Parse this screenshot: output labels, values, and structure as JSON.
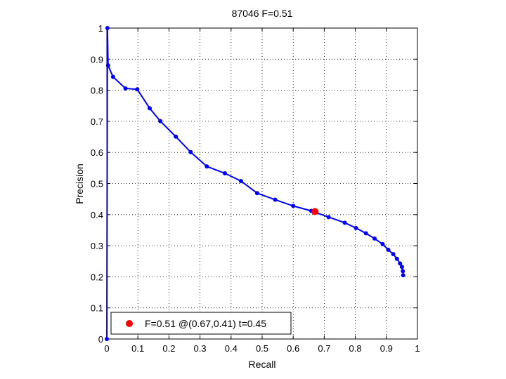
{
  "chart_data": {
    "type": "line",
    "title": "87046 F=0.51",
    "xlabel": "Recall",
    "ylabel": "Precision",
    "xlim": [
      0,
      1
    ],
    "ylim": [
      0,
      1
    ],
    "xticks": [
      "0",
      "0.1",
      "0.2",
      "0.3",
      "0.4",
      "0.5",
      "0.6",
      "0.7",
      "0.8",
      "0.9",
      "1"
    ],
    "yticks": [
      "0",
      "0.1",
      "0.2",
      "0.3",
      "0.4",
      "0.5",
      "0.6",
      "0.7",
      "0.8",
      "0.9",
      "1"
    ],
    "grid": true,
    "series": [
      {
        "color": "#0000ff",
        "x": [
          0.0,
          0.002,
          0.004,
          0.02,
          0.06,
          0.098,
          0.138,
          0.172,
          0.222,
          0.27,
          0.322,
          0.38,
          0.432,
          0.484,
          0.542,
          0.6,
          0.658,
          0.714,
          0.766,
          0.802,
          0.834,
          0.862,
          0.888,
          0.906,
          0.922,
          0.934,
          0.944,
          0.95,
          0.953,
          0.954
        ],
        "y": [
          0.0,
          1.0,
          0.88,
          0.843,
          0.806,
          0.803,
          0.742,
          0.701,
          0.651,
          0.601,
          0.555,
          0.533,
          0.508,
          0.469,
          0.448,
          0.428,
          0.412,
          0.392,
          0.374,
          0.357,
          0.34,
          0.323,
          0.305,
          0.287,
          0.273,
          0.258,
          0.243,
          0.232,
          0.218,
          0.205
        ]
      }
    ],
    "highlight": {
      "x": 0.67,
      "y": 0.41,
      "color": "#ff0000"
    },
    "legend": {
      "position": "bottom-left",
      "label": "F=0.51 @(0.67,0.41) t=0.45"
    }
  }
}
